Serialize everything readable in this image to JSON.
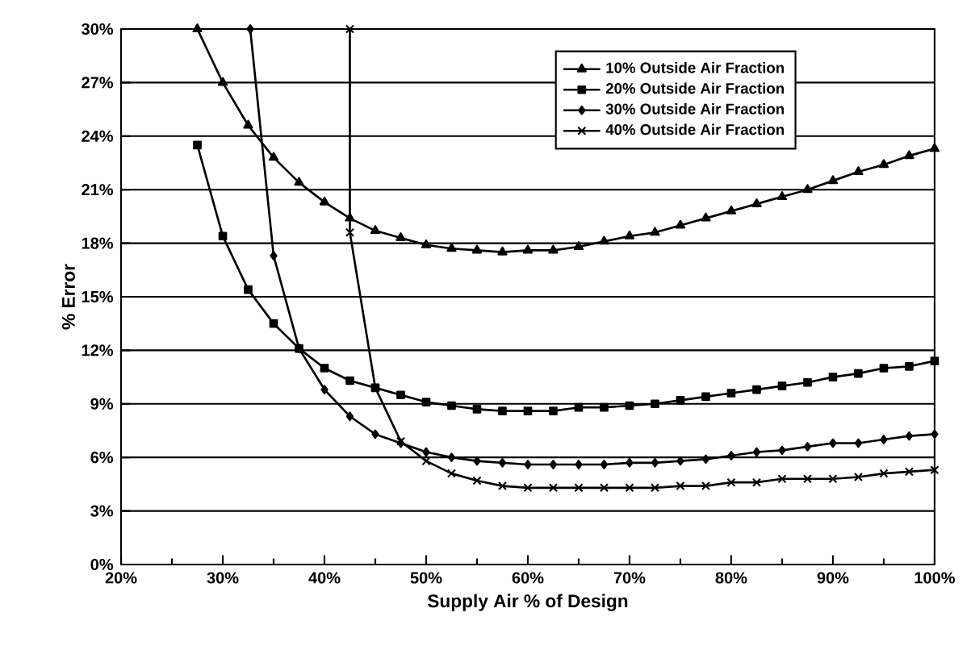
{
  "chart_data": {
    "type": "line",
    "xlabel": "Supply Air % of Design",
    "ylabel": "% Error",
    "xlim": [
      20,
      100
    ],
    "ylim": [
      0,
      30
    ],
    "xticks": [
      {
        "value": 20,
        "label": "20%"
      },
      {
        "value": 30,
        "label": "30%"
      },
      {
        "value": 40,
        "label": "40%"
      },
      {
        "value": 50,
        "label": "50%"
      },
      {
        "value": 60,
        "label": "60%"
      },
      {
        "value": 70,
        "label": "70%"
      },
      {
        "value": 80,
        "label": "80%"
      },
      {
        "value": 90,
        "label": "90%"
      },
      {
        "value": 100,
        "label": "100%"
      }
    ],
    "yticks": [
      {
        "value": 0,
        "label": "0%"
      },
      {
        "value": 3,
        "label": "3%"
      },
      {
        "value": 6,
        "label": "6%"
      },
      {
        "value": 9,
        "label": "9%"
      },
      {
        "value": 12,
        "label": "12%"
      },
      {
        "value": 15,
        "label": "15%"
      },
      {
        "value": 18,
        "label": "18%"
      },
      {
        "value": 21,
        "label": "21%"
      },
      {
        "value": 24,
        "label": "24%"
      },
      {
        "value": 27,
        "label": "27%"
      },
      {
        "value": 30,
        "label": "30%"
      }
    ],
    "grid": "y",
    "legend": "top right",
    "line_style": "solid",
    "series": [
      {
        "name": "10% Outside Air Fraction",
        "color": "#000000",
        "marker": "triangle",
        "x": [
          27.5,
          30,
          32.5,
          35,
          37.5,
          40,
          42.5,
          45,
          47.5,
          50,
          52.5,
          55,
          57.5,
          60,
          62.5,
          65,
          67.5,
          70,
          72.5,
          75,
          77.5,
          80,
          82.5,
          85,
          87.5,
          90,
          92.5,
          95,
          97.5,
          100
        ],
        "values": [
          30.0,
          27.0,
          24.6,
          22.8,
          21.4,
          20.3,
          19.4,
          18.7,
          18.3,
          17.9,
          17.7,
          17.6,
          17.5,
          17.6,
          17.6,
          17.8,
          18.1,
          18.4,
          18.6,
          19.0,
          19.4,
          19.8,
          20.2,
          20.6,
          21.0,
          21.5,
          22.0,
          22.4,
          22.9,
          23.3
        ]
      },
      {
        "name": "20% Outside Air Fraction",
        "color": "#000000",
        "marker": "square",
        "x": [
          27.5,
          30,
          32.5,
          35,
          37.5,
          40,
          42.5,
          45,
          47.5,
          50,
          52.5,
          55,
          57.5,
          60,
          62.5,
          65,
          67.5,
          70,
          72.5,
          75,
          77.5,
          80,
          82.5,
          85,
          87.5,
          90,
          92.5,
          95,
          97.5,
          100
        ],
        "values": [
          23.5,
          18.4,
          15.4,
          13.5,
          12.1,
          11.0,
          10.3,
          9.9,
          9.5,
          9.1,
          8.9,
          8.7,
          8.6,
          8.6,
          8.6,
          8.8,
          8.8,
          8.9,
          9.0,
          9.2,
          9.4,
          9.6,
          9.8,
          10.0,
          10.2,
          10.5,
          10.7,
          11.0,
          11.1,
          11.4
        ]
      },
      {
        "name": "30% Outside Air Fraction",
        "color": "#000000",
        "marker": "diamond",
        "x": [
          32.7,
          35,
          37.5,
          40,
          42.5,
          45,
          47.5,
          50,
          52.5,
          55,
          57.5,
          60,
          62.5,
          65,
          67.5,
          70,
          72.5,
          75,
          77.5,
          80,
          82.5,
          85,
          87.5,
          90,
          92.5,
          95,
          97.5,
          100
        ],
        "values": [
          30,
          17.3,
          12.1,
          9.8,
          8.3,
          7.3,
          6.8,
          6.3,
          6.0,
          5.8,
          5.7,
          5.6,
          5.6,
          5.6,
          5.6,
          5.7,
          5.7,
          5.8,
          5.9,
          6.1,
          6.3,
          6.4,
          6.6,
          6.8,
          6.8,
          7.0,
          7.2,
          7.3
        ]
      },
      {
        "name": "40% Outside Air Fraction",
        "color": "#000000",
        "marker": "cross",
        "x": [
          42.5,
          42.5,
          45,
          47.5,
          50,
          52.5,
          55,
          57.5,
          60,
          62.5,
          65,
          67.5,
          70,
          72.5,
          75,
          77.5,
          80,
          82.5,
          85,
          87.5,
          90,
          92.5,
          95,
          97.5,
          100
        ],
        "values": [
          30,
          18.6,
          9.9,
          6.9,
          5.8,
          5.1,
          4.7,
          4.4,
          4.3,
          4.3,
          4.3,
          4.3,
          4.3,
          4.3,
          4.4,
          4.4,
          4.6,
          4.6,
          4.8,
          4.8,
          4.8,
          4.9,
          5.1,
          5.2,
          5.3
        ]
      }
    ]
  }
}
